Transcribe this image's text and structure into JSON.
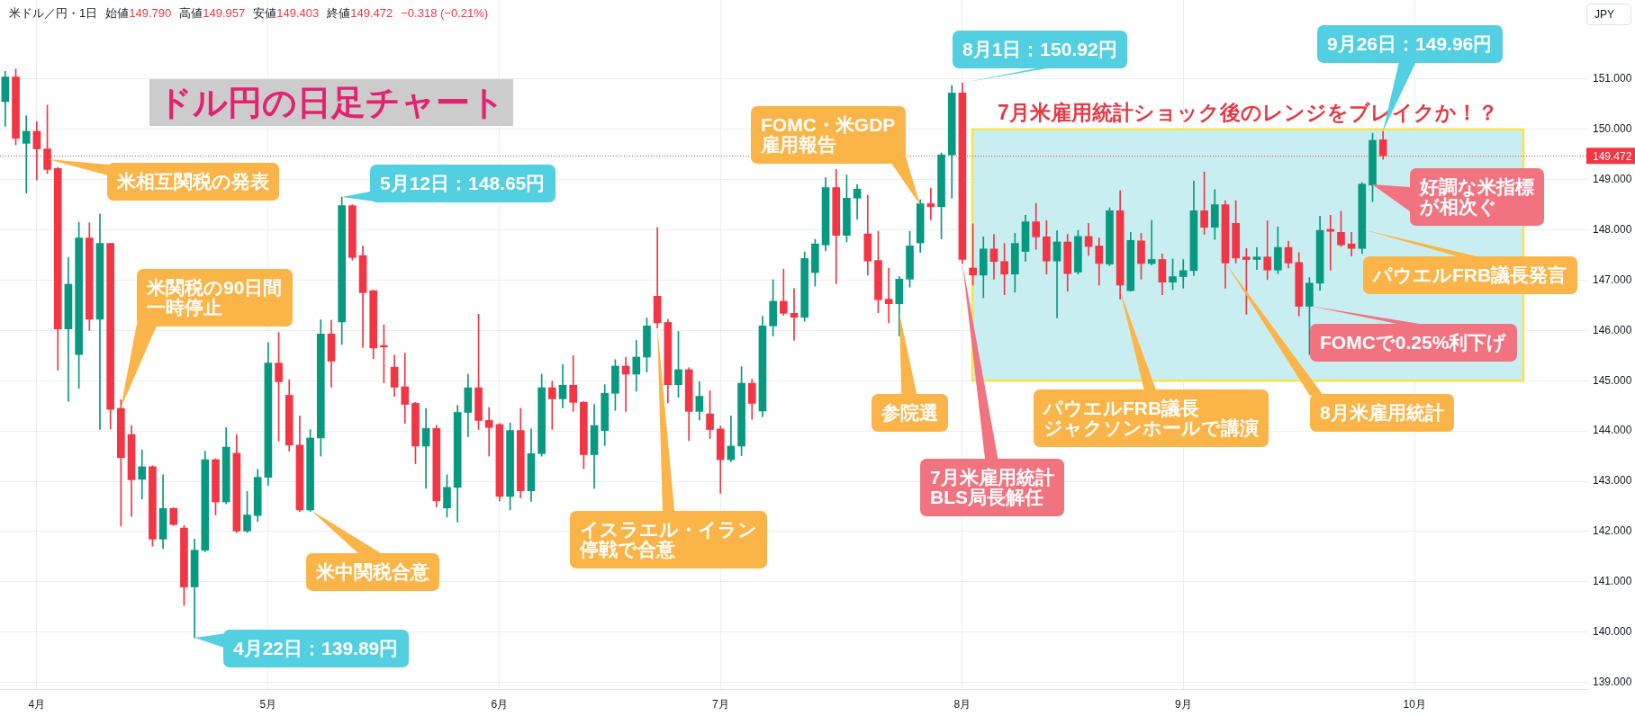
{
  "chart_data": {
    "type": "candlestick",
    "title": "ドル円の日足チャート",
    "subtitle": "米ドル／円・1日",
    "ylabel": "JPY",
    "categories": [
      null,
      null,
      null,
      "4月",
      null,
      null,
      null,
      null,
      null,
      null,
      null,
      null,
      null,
      null,
      null,
      null,
      null,
      null,
      null,
      null,
      null,
      null,
      null,
      null,
      null,
      "5月",
      null,
      null,
      null,
      null,
      null,
      null,
      null,
      null,
      null,
      null,
      null,
      null,
      null,
      null,
      null,
      null,
      null,
      null,
      null,
      null,
      null,
      "6月",
      null,
      null,
      null,
      null,
      null,
      null,
      null,
      null,
      null,
      null,
      null,
      null,
      null,
      null,
      null,
      null,
      null,
      null,
      null,
      null,
      "7月",
      null,
      null,
      null,
      null,
      null,
      null,
      null,
      null,
      null,
      null,
      null,
      null,
      null,
      null,
      null,
      null,
      null,
      null,
      null,
      null,
      null,
      null,
      "8月",
      null,
      null,
      null,
      null,
      null,
      null,
      null,
      null,
      null,
      null,
      null,
      null,
      null,
      null,
      null,
      null,
      null,
      null,
      null,
      null,
      "9月",
      null,
      null,
      null,
      null,
      null,
      null,
      null,
      null,
      null,
      null,
      null,
      null,
      null,
      null,
      null,
      null,
      null,
      null,
      null,
      null,
      null,
      "10月",
      null,
      null,
      null,
      null,
      null,
      null,
      null,
      null,
      null,
      null,
      null,
      null,
      null,
      null,
      null,
      null
    ],
    "ohlc": [
      [
        150.55,
        151.15,
        150.06,
        151.04
      ],
      [
        151.04,
        151.2,
        149.69,
        149.82
      ],
      [
        149.72,
        150.27,
        148.73,
        149.96
      ],
      [
        149.96,
        150.15,
        148.99,
        149.61
      ],
      [
        149.61,
        150.48,
        149.12,
        149.2
      ],
      [
        149.22,
        149.24,
        145.21,
        146.03
      ],
      [
        146.03,
        147.45,
        144.59,
        146.92
      ],
      [
        145.52,
        148.15,
        144.85,
        147.84
      ],
      [
        147.84,
        148.14,
        146.0,
        146.22
      ],
      [
        146.22,
        148.31,
        144.03,
        147.73
      ],
      [
        147.73,
        147.73,
        144.04,
        144.43
      ],
      [
        144.45,
        144.62,
        142.11,
        143.47
      ],
      [
        143.93,
        144.11,
        142.3,
        143.03
      ],
      [
        143.04,
        143.62,
        142.65,
        143.29
      ],
      [
        143.29,
        143.31,
        141.71,
        141.85
      ],
      [
        141.85,
        143.13,
        141.66,
        142.46
      ],
      [
        142.46,
        142.48,
        142.12,
        142.14
      ],
      [
        142.07,
        142.12,
        140.53,
        140.9
      ],
      [
        140.9,
        141.85,
        139.89,
        141.63
      ],
      [
        141.63,
        143.6,
        141.6,
        143.43
      ],
      [
        143.43,
        143.45,
        142.33,
        142.59
      ],
      [
        142.59,
        144.07,
        142.55,
        143.68
      ],
      [
        143.56,
        143.93,
        141.98,
        142.01
      ],
      [
        142.01,
        142.8,
        141.98,
        142.33
      ],
      [
        142.32,
        143.24,
        142.2,
        143.08
      ],
      [
        143.08,
        145.76,
        142.92,
        145.35
      ],
      [
        145.35,
        145.96,
        143.8,
        144.98
      ],
      [
        144.71,
        145.02,
        143.6,
        143.72
      ],
      [
        143.72,
        144.3,
        142.4,
        142.43
      ],
      [
        142.43,
        144.03,
        142.4,
        143.86
      ],
      [
        143.86,
        146.21,
        143.5,
        145.93
      ],
      [
        145.93,
        146.2,
        144.87,
        145.39
      ],
      [
        146.17,
        148.65,
        145.72,
        148.48
      ],
      [
        148.48,
        148.5,
        147.4,
        147.45
      ],
      [
        147.49,
        147.68,
        145.66,
        146.75
      ],
      [
        146.79,
        146.8,
        145.44,
        145.65
      ],
      [
        145.7,
        146.11,
        144.96,
        145.67
      ],
      [
        145.27,
        145.51,
        144.69,
        144.87
      ],
      [
        144.88,
        145.55,
        144.15,
        144.53
      ],
      [
        144.55,
        144.57,
        143.35,
        143.7
      ],
      [
        143.7,
        144.45,
        142.86,
        144.05
      ],
      [
        144.05,
        144.11,
        142.49,
        142.61
      ],
      [
        142.47,
        143.13,
        142.29,
        142.88
      ],
      [
        142.88,
        144.51,
        142.19,
        144.37
      ],
      [
        144.37,
        145.13,
        143.89,
        144.86
      ],
      [
        144.86,
        146.32,
        144.03,
        144.21
      ],
      [
        144.21,
        144.47,
        143.5,
        144.07
      ],
      [
        144.13,
        144.15,
        142.61,
        142.7
      ],
      [
        142.7,
        144.16,
        142.43,
        144.01
      ],
      [
        144.01,
        144.45,
        142.67,
        142.81
      ],
      [
        142.81,
        144.04,
        142.6,
        143.55
      ],
      [
        143.55,
        145.13,
        143.5,
        144.86
      ],
      [
        144.86,
        144.99,
        144.03,
        144.64
      ],
      [
        144.64,
        145.32,
        144.46,
        144.91
      ],
      [
        144.91,
        145.5,
        144.39,
        144.57
      ],
      [
        144.57,
        144.59,
        143.25,
        143.53
      ],
      [
        143.53,
        144.53,
        142.86,
        144.11
      ],
      [
        144.01,
        144.92,
        143.71,
        144.75
      ],
      [
        144.75,
        145.42,
        144.41,
        145.29
      ],
      [
        145.29,
        145.47,
        144.39,
        145.13
      ],
      [
        145.13,
        145.8,
        144.79,
        145.47
      ],
      [
        145.47,
        146.25,
        145.17,
        146.09
      ],
      [
        146.68,
        148.05,
        146.05,
        146.15
      ],
      [
        146.16,
        146.22,
        144.56,
        144.92
      ],
      [
        144.92,
        145.98,
        144.67,
        145.22
      ],
      [
        145.22,
        145.26,
        143.81,
        144.39
      ],
      [
        144.39,
        144.98,
        144.22,
        144.69
      ],
      [
        144.34,
        144.8,
        143.85,
        144.03
      ],
      [
        144.04,
        144.1,
        142.76,
        143.43
      ],
      [
        143.43,
        144.3,
        143.39,
        143.7
      ],
      [
        143.7,
        145.28,
        143.51,
        144.95
      ],
      [
        144.95,
        145.03,
        144.23,
        144.55
      ],
      [
        144.4,
        146.28,
        144.28,
        146.09
      ],
      [
        146.09,
        147.01,
        145.89,
        146.58
      ],
      [
        146.58,
        147.22,
        146.3,
        146.34
      ],
      [
        146.34,
        146.83,
        145.8,
        146.26
      ],
      [
        146.26,
        147.56,
        146.18,
        147.43
      ],
      [
        147.15,
        147.81,
        146.88,
        147.72
      ],
      [
        147.7,
        149.04,
        147.58,
        148.84
      ],
      [
        148.84,
        149.2,
        146.93,
        147.89
      ],
      [
        147.89,
        149.09,
        147.76,
        148.63
      ],
      [
        148.63,
        148.9,
        148.21,
        148.81
      ],
      [
        147.92,
        148.69,
        147.1,
        147.38
      ],
      [
        147.39,
        147.97,
        146.35,
        146.61
      ],
      [
        146.62,
        147.24,
        146.15,
        146.53
      ],
      [
        146.53,
        147.07,
        145.89,
        147.02
      ],
      [
        147.02,
        147.97,
        146.86,
        147.68
      ],
      [
        147.74,
        148.6,
        147.55,
        148.52
      ],
      [
        148.52,
        148.83,
        148.2,
        148.46
      ],
      [
        148.46,
        149.53,
        147.82,
        149.49
      ],
      [
        149.49,
        150.87,
        148.63,
        150.72
      ],
      [
        150.72,
        150.92,
        147.33,
        147.41
      ],
      [
        147.24,
        148.12,
        146.9,
        147.1
      ],
      [
        147.1,
        147.86,
        146.65,
        147.62
      ],
      [
        147.62,
        147.91,
        147.02,
        147.37
      ],
      [
        147.37,
        147.73,
        146.71,
        147.12
      ],
      [
        147.12,
        147.93,
        146.76,
        147.73
      ],
      [
        147.57,
        148.29,
        147.37,
        148.16
      ],
      [
        148.16,
        148.53,
        147.61,
        147.86
      ],
      [
        147.86,
        148.18,
        147.12,
        147.38
      ],
      [
        147.38,
        147.98,
        146.25,
        147.76
      ],
      [
        147.76,
        147.91,
        146.78,
        147.13
      ],
      [
        147.16,
        147.99,
        147.12,
        147.87
      ],
      [
        147.87,
        148.13,
        147.49,
        147.67
      ],
      [
        147.68,
        147.84,
        146.9,
        147.33
      ],
      [
        147.32,
        148.44,
        147.29,
        148.38
      ],
      [
        148.38,
        148.78,
        146.62,
        146.9
      ],
      [
        146.79,
        147.95,
        146.78,
        147.79
      ],
      [
        147.78,
        147.93,
        147.02,
        147.33
      ],
      [
        147.33,
        148.19,
        147.3,
        147.41
      ],
      [
        147.41,
        147.52,
        146.71,
        146.96
      ],
      [
        146.96,
        147.42,
        146.81,
        147.07
      ],
      [
        147.07,
        147.41,
        146.84,
        147.19
      ],
      [
        147.19,
        148.97,
        147.09,
        148.38
      ],
      [
        148.38,
        149.15,
        147.91,
        148.05
      ],
      [
        148.05,
        148.8,
        147.81,
        148.5
      ],
      [
        148.5,
        148.58,
        146.84,
        147.34
      ],
      [
        148.13,
        148.58,
        147.34,
        147.44
      ],
      [
        147.46,
        147.63,
        146.32,
        147.41
      ],
      [
        147.41,
        147.65,
        147.21,
        147.46
      ],
      [
        147.46,
        148.18,
        147.01,
        147.2
      ],
      [
        147.2,
        148.06,
        147.13,
        147.65
      ],
      [
        147.65,
        147.77,
        147.24,
        147.34
      ],
      [
        147.35,
        147.55,
        146.29,
        146.48
      ],
      [
        146.48,
        147.05,
        145.52,
        146.94
      ],
      [
        146.94,
        148.27,
        146.8,
        147.99
      ],
      [
        148.01,
        148.29,
        147.2,
        147.97
      ],
      [
        147.95,
        148.37,
        147.67,
        147.7
      ],
      [
        147.72,
        147.95,
        147.48,
        147.63
      ],
      [
        147.63,
        148.94,
        147.53,
        148.91
      ],
      [
        148.89,
        149.92,
        148.56,
        149.78
      ],
      [
        149.79,
        149.957,
        149.403,
        149.472
      ],
      null,
      null,
      null,
      null,
      null,
      null,
      null,
      null,
      null,
      null,
      null,
      null,
      null,
      null,
      null,
      null,
      null,
      null,
      null
    ],
    "colors": [
      "#089981",
      "#f23645",
      "#089981",
      "#f23645",
      "#f23645",
      "#f23645",
      "#089981",
      "#089981",
      "#f23645",
      "#089981",
      "#f23645",
      "#f23645",
      "#f23645",
      "#089981",
      "#f23645",
      "#089981",
      "#f23645",
      "#f23645",
      "#089981",
      "#089981",
      "#f23645",
      "#089981",
      "#f23645",
      "#089981",
      "#089981",
      "#089981",
      "#f23645",
      "#f23645",
      "#f23645",
      "#089981",
      "#089981",
      "#f23645",
      "#089981",
      "#f23645",
      "#f23645",
      "#f23645",
      "#f23645",
      "#f23645",
      "#f23645",
      "#f23645",
      "#089981",
      "#f23645",
      "#089981",
      "#089981",
      "#089981",
      "#f23645",
      "#f23645",
      "#f23645",
      "#089981",
      "#f23645",
      "#089981",
      "#089981",
      "#f23645",
      "#089981",
      "#f23645",
      "#f23645",
      "#089981",
      "#089981",
      "#089981",
      "#f23645",
      "#089981",
      "#089981",
      "#f23645",
      "#f23645",
      "#089981",
      "#f23645",
      "#089981",
      "#f23645",
      "#f23645",
      "#089981",
      "#089981",
      "#f23645",
      "#089981",
      "#089981",
      "#f23645",
      "#f23645",
      "#089981",
      "#089981",
      "#089981",
      "#f23645",
      "#089981",
      "#089981",
      "#f23645",
      "#f23645",
      "#f23645",
      "#089981",
      "#089981",
      "#089981",
      "#f23645",
      "#089981",
      "#089981",
      "#f23645",
      "#f23645",
      "#089981",
      "#f23645",
      "#f23645",
      "#089981",
      "#089981",
      "#f23645",
      "#f23645",
      "#089981",
      "#f23645",
      "#089981",
      "#f23645",
      "#f23645",
      "#089981",
      "#f23645",
      "#089981",
      "#f23645",
      "#089981",
      "#f23645",
      "#089981",
      "#089981",
      "#089981",
      "#f23645",
      "#089981",
      "#f23645",
      "#f23645",
      "#f23645",
      "#089981",
      "#f23645",
      "#089981",
      "#f23645",
      "#f23645",
      "#089981",
      "#089981",
      "#f23645",
      "#f23645",
      "#f23645",
      "#089981",
      "#089981",
      "#f23645",
      null,
      null,
      null,
      null,
      null,
      null,
      null,
      null,
      null,
      null,
      null,
      null,
      null,
      null,
      null,
      null,
      null,
      null,
      null
    ],
    "ylim": [
      138.87,
      152.57
    ],
    "yticks": [
      {
        "value": 139,
        "label": "139.000"
      },
      {
        "value": 140,
        "label": "140.000"
      },
      {
        "value": 141,
        "label": "141.000"
      },
      {
        "value": 142,
        "label": "142.000"
      },
      {
        "value": 143,
        "label": "143.000"
      },
      {
        "value": 144,
        "label": "144.000"
      },
      {
        "value": 145,
        "label": "145.000"
      },
      {
        "value": 146,
        "label": "146.000"
      },
      {
        "value": 147,
        "label": "147.000"
      },
      {
        "value": 148,
        "label": "148.000"
      },
      {
        "value": 149,
        "label": "149.000"
      },
      {
        "value": 150,
        "label": "150.000"
      },
      {
        "value": 151,
        "label": "151.000"
      }
    ],
    "grid": true,
    "ref_lines": [
      {
        "axis": "y",
        "value": 149.472,
        "label": "149.472",
        "color": "#f23645",
        "line_style": "dotted"
      }
    ],
    "bands": [
      {
        "axis": "y",
        "from": 145,
        "to": 150,
        "label": "7月米雇用統計ショック後のレンジをブレイクか！？",
        "color": "#c9eef2"
      }
    ],
    "annotations": [
      "始値149.790",
      "高値149.957",
      "安値149.403",
      "終値149.472",
      "−0.318 (−0.21%)",
      "米相互関税の発表",
      "米関税の90日間一時停止",
      "4月22日：139.89円",
      "5月12日：148.65円",
      "米中関税合意",
      "イスラエル・イラン停戦で合意",
      "FOMC・米GDP雇用報告",
      "参院選",
      "8月1日：150.92円",
      "7月米雇用統計BLS局長解任",
      "パウエルFRB議長ジャクソンホールで講演",
      "8月米雇用統計",
      "FOMCで0.25%利下げ",
      "パウエルFRB議長発言",
      "好調な米指標が相次ぐ",
      "9月26日：149.96円"
    ]
  }
}
